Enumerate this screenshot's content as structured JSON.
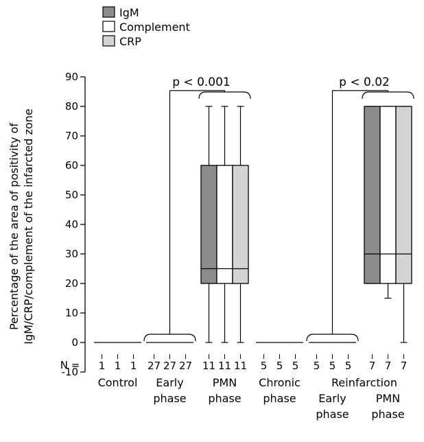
{
  "chart_data": {
    "type": "box",
    "ylabel_lines": [
      "Percentage of the area of positivity of",
      "IgM/CRP/complement of the infarcted zone"
    ],
    "ylim": [
      -10,
      90
    ],
    "yticks": [
      -10,
      0,
      10,
      20,
      30,
      40,
      50,
      60,
      70,
      80,
      90
    ],
    "n_prefix": "N =",
    "legend": [
      {
        "name": "IgM",
        "color": "#8c8c8c"
      },
      {
        "name": "Complement",
        "color": "#ffffff"
      },
      {
        "name": "CRP",
        "color": "#d4d4d4"
      }
    ],
    "groups": [
      {
        "label_lines": [
          "Control"
        ],
        "n": [
          "1",
          "1",
          "1"
        ],
        "series": [
          {
            "name": "IgM",
            "min": 0,
            "q1": 0,
            "median": 0,
            "q3": 0,
            "max": 0
          },
          {
            "name": "Complement",
            "min": 0,
            "q1": 0,
            "median": 0,
            "q3": 0,
            "max": 0
          },
          {
            "name": "CRP",
            "min": 0,
            "q1": 0,
            "median": 0,
            "q3": 0,
            "max": 0
          }
        ]
      },
      {
        "label_lines": [
          "Early",
          "phase"
        ],
        "n": [
          "27",
          "27",
          "27"
        ],
        "series": [
          {
            "name": "IgM",
            "min": 0,
            "q1": 0,
            "median": 0,
            "q3": 0,
            "max": 0
          },
          {
            "name": "Complement",
            "min": 0,
            "q1": 0,
            "median": 0,
            "q3": 0,
            "max": 0
          },
          {
            "name": "CRP",
            "min": 0,
            "q1": 0,
            "median": 0,
            "q3": 0,
            "max": 0
          }
        ]
      },
      {
        "label_lines": [
          "PMN",
          "phase"
        ],
        "n": [
          "11",
          "11",
          "11"
        ],
        "series": [
          {
            "name": "IgM",
            "min": 0,
            "q1": 20,
            "median": 25,
            "q3": 60,
            "max": 80
          },
          {
            "name": "Complement",
            "min": 0,
            "q1": 20,
            "median": 25,
            "q3": 60,
            "max": 80
          },
          {
            "name": "CRP",
            "min": 0,
            "q1": 20,
            "median": 25,
            "q3": 60,
            "max": 80
          }
        ]
      },
      {
        "label_lines": [
          "Chronic",
          "phase"
        ],
        "n": [
          "5",
          "5",
          "5"
        ],
        "series": [
          {
            "name": "IgM",
            "min": 0,
            "q1": 0,
            "median": 0,
            "q3": 0,
            "max": 0
          },
          {
            "name": "Complement",
            "min": 0,
            "q1": 0,
            "median": 0,
            "q3": 0,
            "max": 0
          },
          {
            "name": "CRP",
            "min": 0,
            "q1": 0,
            "median": 0,
            "q3": 0,
            "max": 0
          }
        ]
      },
      {
        "label_lines": [
          "Early",
          "phase"
        ],
        "n": [
          "5",
          "5",
          "5"
        ],
        "series": [
          {
            "name": "IgM",
            "min": 0,
            "q1": 0,
            "median": 0,
            "q3": 0,
            "max": 0
          },
          {
            "name": "Complement",
            "min": 0,
            "q1": 0,
            "median": 0,
            "q3": 0,
            "max": 0
          },
          {
            "name": "CRP",
            "min": 0,
            "q1": 0,
            "median": 0,
            "q3": 0,
            "max": 0
          }
        ]
      },
      {
        "label_lines": [
          "PMN",
          "phase"
        ],
        "n": [
          "7",
          "7",
          "7"
        ],
        "series": [
          {
            "name": "IgM",
            "min": 20,
            "q1": 20,
            "median": 30,
            "q3": 80,
            "max": 80
          },
          {
            "name": "Complement",
            "min": 15,
            "q1": 20,
            "median": 30,
            "q3": 80,
            "max": 80
          },
          {
            "name": "CRP",
            "min": 0,
            "q1": 20,
            "median": 30,
            "q3": 80,
            "max": 80
          }
        ]
      }
    ],
    "super_labels": [
      {
        "text": "Reinfarction",
        "groups": [
          4,
          5
        ]
      }
    ],
    "comparisons": [
      {
        "text": "p < 0.001",
        "from_group": 1,
        "to_group": 2
      },
      {
        "text": "p < 0.02",
        "from_group": 4,
        "to_group": 5
      }
    ]
  }
}
